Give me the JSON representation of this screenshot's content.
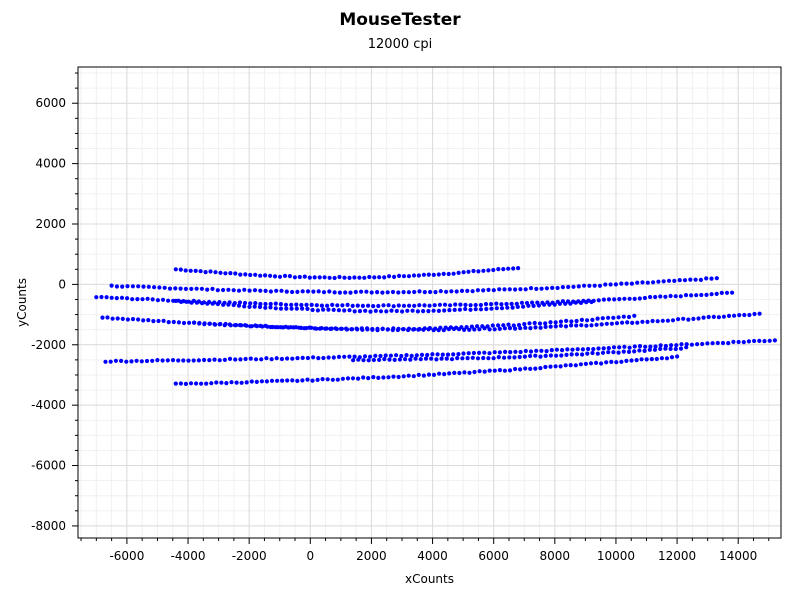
{
  "chart_data": {
    "type": "scatter",
    "title": "MouseTester",
    "subtitle": "12000 cpi",
    "xlabel": "xCounts",
    "ylabel": "yCounts",
    "xlim": [
      -7600,
      15400
    ],
    "ylim": [
      -8400,
      7200
    ],
    "xticks": [
      -6000,
      -4000,
      -2000,
      0,
      2000,
      4000,
      6000,
      8000,
      10000,
      12000,
      14000
    ],
    "yticks": [
      -8000,
      -6000,
      -4000,
      -2000,
      0,
      2000,
      4000,
      6000
    ],
    "grid": true,
    "point_color": "#0000ff",
    "strokes": [
      {
        "from": [
          -4400,
          500
        ],
        "to": [
          6800,
          550
        ],
        "sag": 300,
        "points": 70
      },
      {
        "from": [
          -6500,
          -50
        ],
        "to": [
          13300,
          200
        ],
        "sag": 320,
        "points": 115
      },
      {
        "from": [
          -7000,
          -420
        ],
        "to": [
          13800,
          -280
        ],
        "sag": 350,
        "points": 125
      },
      {
        "from": [
          -4400,
          -550
        ],
        "to": [
          9200,
          -580
        ],
        "sag": 320,
        "points": 80
      },
      {
        "from": [
          -6800,
          -1100
        ],
        "to": [
          14700,
          -980
        ],
        "sag": 460,
        "points": 130
      },
      {
        "from": [
          -3800,
          -1280
        ],
        "to": [
          10600,
          -1050
        ],
        "sag": 300,
        "points": 85
      },
      {
        "from": [
          -6700,
          -2550
        ],
        "to": [
          15200,
          -1850
        ],
        "sag": 120,
        "points": 130
      },
      {
        "from": [
          1400,
          -2500
        ],
        "to": [
          12300,
          -2100
        ],
        "sag": 100,
        "points": 65
      },
      {
        "from": [
          -4400,
          -3300
        ],
        "to": [
          12000,
          -2400
        ],
        "sag": 150,
        "points": 100
      }
    ]
  }
}
